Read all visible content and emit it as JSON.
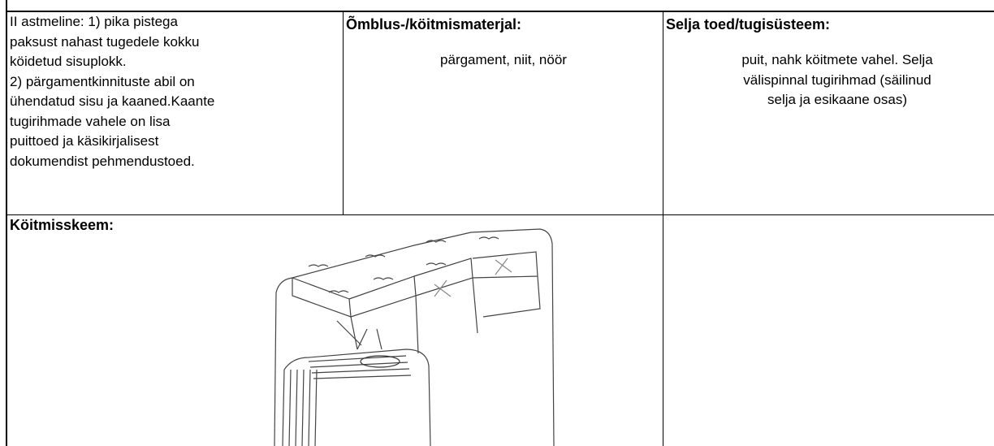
{
  "table": {
    "rows": [
      [
        {
          "lines": [
            "II astmeline: 1) pika pistega",
            "paksust nahast tugedele kokku",
            "köidetud sisuplokk.",
            "2) pärgamentkinnituste abil on",
            "ühendatud sisu ja kaaned.Kaante",
            "tugirihmade vahele on lisa",
            "puittoed ja käsikirjalisest",
            "dokumendist pehmendustoed."
          ]
        },
        {
          "header": "Õmblus-/köitmismaterjal:",
          "lines": [
            "pärgament, niit, nöör"
          ]
        },
        {
          "header": "Selja toed/tugisüsteem:",
          "lines": [
            "puit, nahk köitmete vahel. Selja",
            "välispinnal tugirihmad (säilinud",
            "selja ja esikaane osas)"
          ]
        }
      ],
      [
        {
          "header": "Köitmisskeem:"
        }
      ]
    ]
  }
}
